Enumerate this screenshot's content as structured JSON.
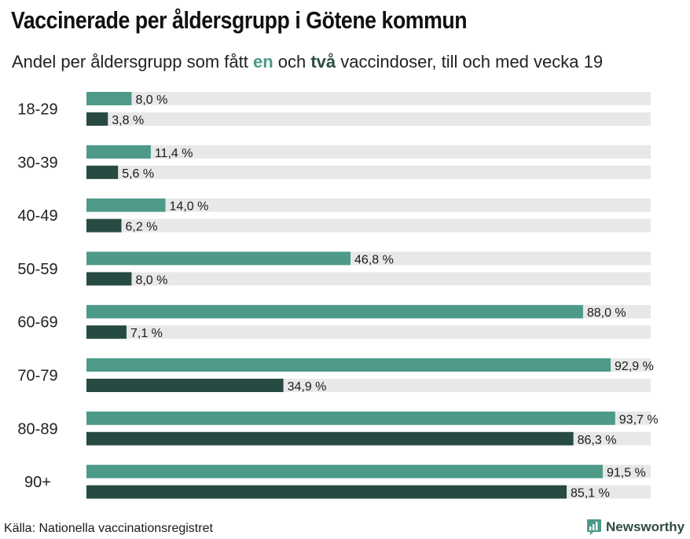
{
  "title": "Vaccinerade per åldersgrupp i Götene kommun",
  "subtitle": {
    "prefix": "Andel per åldersgrupp som fått ",
    "dose_one": "en",
    "middle": " och ",
    "dose_two": "två",
    "suffix": " vaccindoser, till och med vecka 19"
  },
  "colors": {
    "dose_one": "#4d9a89",
    "dose_two": "#274b43",
    "track": "#e8e8e8"
  },
  "chart_data": {
    "type": "bar",
    "orientation": "horizontal",
    "categories": [
      "18-29",
      "30-39",
      "40-49",
      "50-59",
      "60-69",
      "70-79",
      "80-89",
      "90+"
    ],
    "series": [
      {
        "values": [
          8.0,
          11.4,
          14.0,
          46.8,
          88.0,
          92.9,
          93.7,
          91.5
        ]
      },
      {
        "values": [
          3.8,
          5.6,
          6.2,
          8.0,
          7.1,
          34.9,
          86.3,
          85.1
        ]
      }
    ],
    "value_labels": [
      [
        "8,0 %",
        "11,4 %",
        "14,0 %",
        "46,8 %",
        "88,0 %",
        "92,9 %",
        "93,7 %",
        "91,5 %"
      ],
      [
        "3,8 %",
        "5,6 %",
        "6,2 %",
        "8,0 %",
        "7,1 %",
        "34,9 %",
        "86,3 %",
        "85,1 %"
      ]
    ],
    "xlim": [
      0,
      100
    ],
    "grid": false,
    "legend": "none"
  },
  "footer": {
    "source": "Källa: Nationella vaccinationsregistret",
    "brand": "Newsworthy",
    "brand_icon": "newsworthy-logo-icon"
  }
}
